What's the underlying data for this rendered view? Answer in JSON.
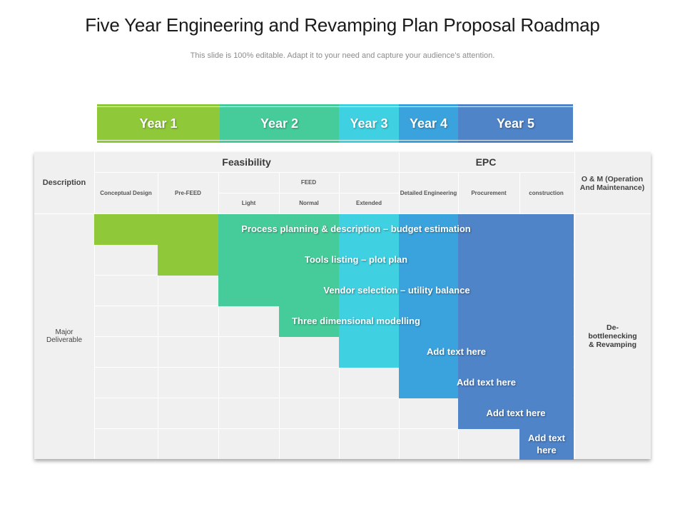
{
  "title": "Five Year Engineering and Revamping Plan Proposal Roadmap",
  "subtitle": "This slide is 100% editable. Adapt it to your need and capture your audience’s attention.",
  "colors": {
    "year1": "#8fc93a",
    "year2": "#46cc9a",
    "year3": "#3fd0e2",
    "year4": "#3aa3de",
    "year5": "#4f84c8",
    "panel": "#f0f0f0"
  },
  "years": [
    "Year 1",
    "Year 2",
    "Year 3",
    "Year 4",
    "Year 5"
  ],
  "headers": {
    "description": "Description",
    "feasibility": "Feasibility",
    "epc": "EPC",
    "om": "O & M (Operation And Maintenance)",
    "conceptual_design": "Conceptual Design",
    "pre_feed": "Pre-FEED",
    "feed": "FEED",
    "light": "Light",
    "normal": "Normal",
    "extended": "Extended",
    "detailed_engineering": "Detailed Engineering",
    "procurement": "Procurement",
    "construction": "construction"
  },
  "side": {
    "major_deliverable": "Major Deliverable",
    "om_deliverable": "De-bottlenecking & Revamping"
  },
  "deliverables": [
    {
      "label": "Process planning & description – budget estimation",
      "years": [
        "year1",
        "year2",
        "year3",
        "year4",
        "year5"
      ]
    },
    {
      "label": "Tools listing – plot plan",
      "years": [
        "year1",
        "year2",
        "year3",
        "year4",
        "year5"
      ]
    },
    {
      "label": "Vendor selection – utility balance",
      "years": [
        "year2",
        "year3",
        "year4",
        "year5"
      ]
    },
    {
      "label": "Three dimensional modelling",
      "years": [
        "year2",
        "year3",
        "year4",
        "year5"
      ]
    },
    {
      "label": "Add text here",
      "years": [
        "year3",
        "year4",
        "year5"
      ]
    },
    {
      "label": "Add text here",
      "years": [
        "year4",
        "year5"
      ]
    },
    {
      "label": "Add text here",
      "years": [
        "year5"
      ]
    },
    {
      "label": "Add text here",
      "years": [
        "year5"
      ]
    }
  ]
}
